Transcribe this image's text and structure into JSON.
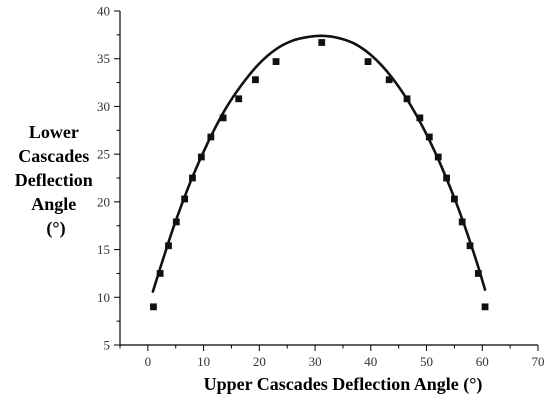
{
  "chart_data": {
    "type": "scatter",
    "title": "",
    "xlabel": "Upper Cascades Deflection Angle (°)",
    "ylabel_lines": [
      "Lower",
      "Cascades",
      "Deflection",
      "Angle",
      "(°)"
    ],
    "xlim": [
      -5,
      70
    ],
    "ylim": [
      5,
      40
    ],
    "x_ticks": [
      0,
      10,
      20,
      30,
      40,
      50,
      60,
      70
    ],
    "y_ticks": [
      5,
      10,
      15,
      20,
      25,
      30,
      35,
      40
    ],
    "grid": false,
    "legend": "none",
    "series": [
      {
        "kind": "markers",
        "marker": "square",
        "x": [
          1,
          2.2,
          3.7,
          5.1,
          6.6,
          8,
          9.6,
          11.3,
          13.5,
          16.3,
          19.3,
          23,
          31.2,
          39.5,
          43.3,
          46.5,
          48.8,
          50.5,
          52.1,
          53.6,
          55,
          56.4,
          57.8,
          59.3,
          60.5
        ],
        "y": [
          9,
          12.5,
          15.4,
          17.9,
          20.3,
          22.5,
          24.7,
          26.8,
          28.8,
          30.8,
          32.8,
          34.7,
          36.7,
          34.7,
          32.8,
          30.8,
          28.8,
          26.8,
          24.7,
          22.5,
          20.3,
          17.9,
          15.4,
          12.5,
          9
        ]
      },
      {
        "kind": "fit-curve",
        "x": [
          0.9,
          3,
          5,
          8,
          11,
          14,
          17,
          20,
          23,
          26,
          29,
          31.3,
          34,
          37,
          40,
          43,
          46,
          49,
          52,
          55,
          57,
          59,
          60.5
        ],
        "y": [
          10.6,
          14.5,
          18.0,
          22.6,
          26.5,
          29.8,
          32.4,
          34.5,
          36.0,
          36.9,
          37.3,
          37.4,
          37.2,
          36.6,
          35.4,
          33.6,
          31.2,
          28.2,
          24.6,
          20.4,
          17.2,
          13.7,
          10.8
        ]
      }
    ],
    "colors": {
      "marker": "#111111",
      "curve": "#111111",
      "axis": "#000000"
    }
  }
}
